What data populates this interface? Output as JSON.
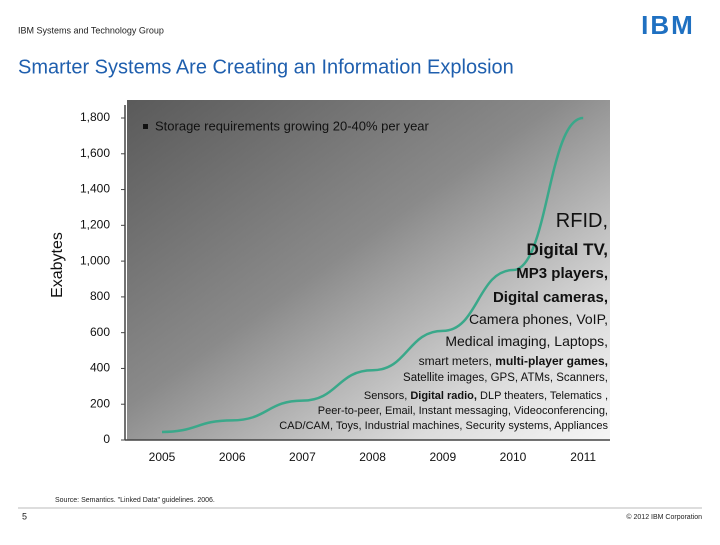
{
  "header": "IBM Systems and Technology Group",
  "logo": "IBM",
  "chart_data": {
    "type": "line",
    "title": "Smarter Systems Are Creating an Information Explosion",
    "y_label": "Exabytes",
    "subtitle": "Storage requirements growing 20-40% per year",
    "categories": [
      "2005",
      "2006",
      "2007",
      "2008",
      "2009",
      "2010",
      "2011"
    ],
    "values": [
      45,
      110,
      220,
      390,
      610,
      950,
      1800
    ],
    "color": "#3aa88a",
    "ylim": [
      0,
      1800
    ],
    "yticks": [
      0,
      200,
      400,
      600,
      800,
      {
        "value": 1000,
        "label": "1,000"
      },
      {
        "value": 1200,
        "label": "1,200"
      },
      {
        "value": 1400,
        "label": "1,400"
      },
      {
        "value": 1600,
        "label": "1,600"
      },
      {
        "value": 1800,
        "label": "1,800"
      }
    ],
    "annotations": [
      [
        {
          "text": "RFID,",
          "bold": false
        }
      ],
      [
        {
          "text": "Digital TV,",
          "bold": true
        }
      ],
      [
        {
          "text": "MP3 players,",
          "bold": true
        }
      ],
      [
        {
          "text": "Digital cameras,",
          "bold": true
        }
      ],
      [
        {
          "text": "Camera phones, VoIP,",
          "bold": false
        }
      ],
      [
        {
          "text": "Medical imaging, Laptops,",
          "bold": false
        }
      ],
      [
        {
          "text": "smart meters, ",
          "bold": false
        },
        {
          "text": "multi-player games,",
          "bold": true
        }
      ],
      [
        {
          "text": "Satellite images, GPS, ATMs, Scanners,",
          "bold": false
        }
      ],
      [
        {
          "text": "Sensors, ",
          "bold": false
        },
        {
          "text": "Digital radio,",
          "bold": true
        },
        {
          "text": " DLP theaters, Telematics ,",
          "bold": false
        }
      ],
      [
        {
          "text": "Peer-to-peer, Email, Instant messaging, Videoconferencing,",
          "bold": false
        }
      ],
      [
        {
          "text": "CAD/CAM, Toys, Industrial machines, Security systems, Appliances",
          "bold": false
        }
      ]
    ]
  },
  "footer": {
    "source": "Source: Semantics. \"Linked Data\" guidelines. 2006.",
    "page": "5",
    "copyright": "© 2012 IBM Corporation"
  }
}
